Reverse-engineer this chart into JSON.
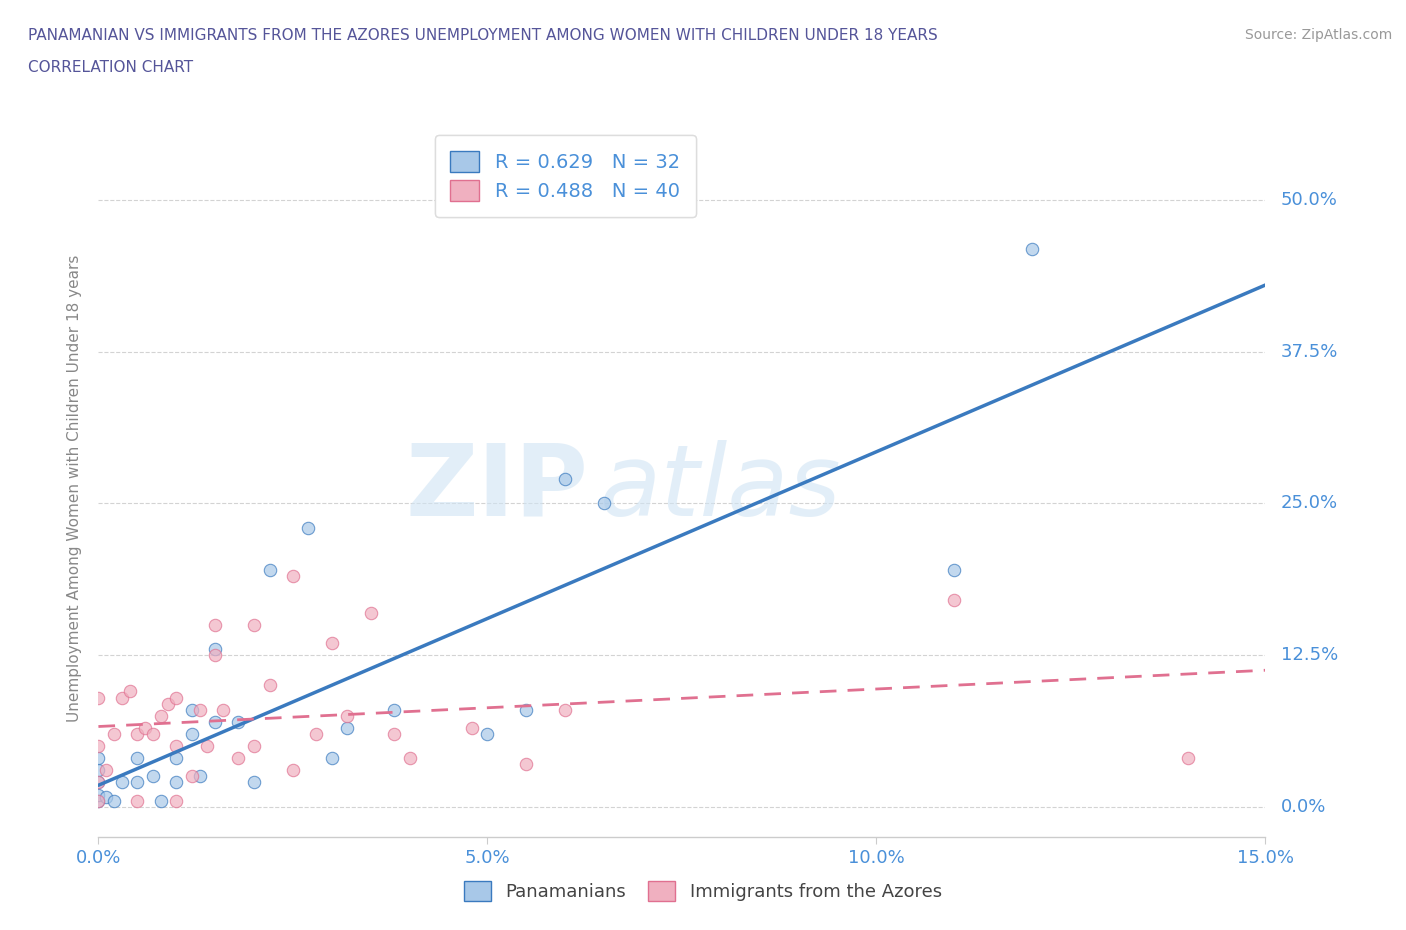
{
  "title_line1": "PANAMANIAN VS IMMIGRANTS FROM THE AZORES UNEMPLOYMENT AMONG WOMEN WITH CHILDREN UNDER 18 YEARS",
  "title_line2": "CORRELATION CHART",
  "source_text": "Source: ZipAtlas.com",
  "ylabel": "Unemployment Among Women with Children Under 18 years",
  "xlim": [
    0.0,
    0.15
  ],
  "ylim": [
    -0.025,
    0.55
  ],
  "yticks": [
    0.0,
    0.125,
    0.25,
    0.375,
    0.5
  ],
  "ytick_labels": [
    "0.0%",
    "12.5%",
    "25.0%",
    "37.5%",
    "50.0%"
  ],
  "xticks": [
    0.0,
    0.05,
    0.1,
    0.15
  ],
  "xtick_labels": [
    "0.0%",
    "5.0%",
    "10.0%",
    "15.0%"
  ],
  "blue_scatter_color": "#a8c8e8",
  "pink_scatter_color": "#f0b0c0",
  "blue_line_color": "#3a7abf",
  "pink_line_color": "#e07090",
  "R_blue": 0.629,
  "N_blue": 32,
  "R_pink": 0.488,
  "N_pink": 40,
  "legend_label_blue": "Panamanians",
  "legend_label_pink": "Immigrants from the Azores",
  "watermark_zip": "ZIP",
  "watermark_atlas": "atlas",
  "background_color": "#ffffff",
  "grid_color": "#c8c8c8",
  "title_color": "#555599",
  "tick_color": "#4a90d9",
  "blue_x": [
    0.0,
    0.0,
    0.0,
    0.0,
    0.0,
    0.001,
    0.002,
    0.003,
    0.005,
    0.005,
    0.007,
    0.008,
    0.01,
    0.01,
    0.012,
    0.012,
    0.013,
    0.015,
    0.015,
    0.018,
    0.02,
    0.022,
    0.027,
    0.03,
    0.032,
    0.038,
    0.05,
    0.055,
    0.06,
    0.065,
    0.11,
    0.12
  ],
  "blue_y": [
    0.005,
    0.01,
    0.02,
    0.03,
    0.04,
    0.008,
    0.005,
    0.02,
    0.02,
    0.04,
    0.025,
    0.005,
    0.02,
    0.04,
    0.06,
    0.08,
    0.025,
    0.07,
    0.13,
    0.07,
    0.02,
    0.195,
    0.23,
    0.04,
    0.065,
    0.08,
    0.06,
    0.08,
    0.27,
    0.25,
    0.195,
    0.46
  ],
  "pink_x": [
    0.0,
    0.0,
    0.0,
    0.0,
    0.001,
    0.002,
    0.003,
    0.004,
    0.005,
    0.005,
    0.006,
    0.007,
    0.008,
    0.009,
    0.01,
    0.01,
    0.01,
    0.012,
    0.013,
    0.014,
    0.015,
    0.015,
    0.016,
    0.018,
    0.02,
    0.02,
    0.022,
    0.025,
    0.025,
    0.028,
    0.03,
    0.032,
    0.035,
    0.038,
    0.04,
    0.048,
    0.055,
    0.06,
    0.11,
    0.14
  ],
  "pink_y": [
    0.005,
    0.02,
    0.05,
    0.09,
    0.03,
    0.06,
    0.09,
    0.095,
    0.005,
    0.06,
    0.065,
    0.06,
    0.075,
    0.085,
    0.005,
    0.05,
    0.09,
    0.025,
    0.08,
    0.05,
    0.125,
    0.15,
    0.08,
    0.04,
    0.05,
    0.15,
    0.1,
    0.03,
    0.19,
    0.06,
    0.135,
    0.075,
    0.16,
    0.06,
    0.04,
    0.065,
    0.035,
    0.08,
    0.17,
    0.04
  ]
}
